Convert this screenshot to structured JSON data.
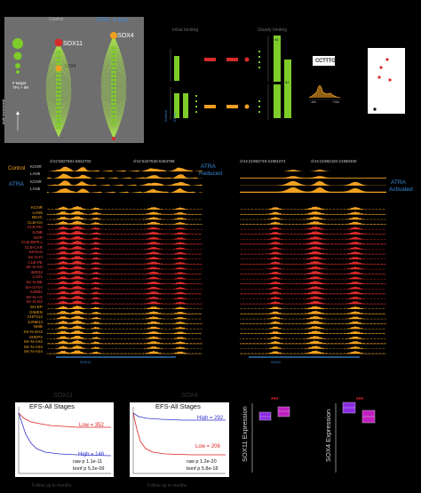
{
  "colors": {
    "background": "#000000",
    "green": "#7dcc2a",
    "red": "#d92b2b",
    "orange": "#f0a020",
    "blue": "#3a8bd8",
    "gray_panel": "#6e6e6e",
    "purple": "#8a2be2",
    "magenta": "#c020c0",
    "km_red": "#d22",
    "km_blue": "#33c"
  },
  "panel_a": {
    "col_left": "Control",
    "col_right": "ATRA, 4 days",
    "gene_left": "SOX11",
    "gene_right": "SOX4",
    "orange_label": "SOX4",
    "axis_label_1": "# target",
    "axis_label_2": "TFs + 99",
    "axis_label_3": "motif enrichment"
  },
  "panel_b": {
    "left_title": "Initial binding",
    "right_title": "Steady binding",
    "x_labels": [
      "Control",
      "ATRA"
    ],
    "bar_values": [
      "98",
      "84"
    ],
    "motif_label": "CCTTTG",
    "motif_axis": [
      "-1kb",
      "+1kb"
    ]
  },
  "tracks_left": {
    "coord_1": "chr2:5827691-5842702",
    "coord_2": "chr2:6427620-6453788",
    "top_labels": [
      "KCNR",
      "LAN5",
      "KCNR",
      "LAN5"
    ],
    "group_control": "Control",
    "group_atra": "ATRA",
    "annotation": [
      "ATRA",
      "Reduced"
    ],
    "gene_label": "SOX11"
  },
  "tracks_right": {
    "coord_1": "chr4:21982749-21991074",
    "coord_2": "chr4:21982420-21990400",
    "annotation": [
      "ATRA",
      "Activated"
    ],
    "gene_label": "SOX4"
  },
  "cell_lines": [
    "KCNR",
    "LAN5",
    "BE2C",
    "CLB-GA",
    "CLB-MA",
    "SJNB",
    "NGP",
    "CLB-BER-L",
    "CLB-CAR",
    "SKNAS",
    "SK-N-FI",
    "CLB-PE",
    "SK-N-SH",
    "IMR32",
    "LAN1",
    "SK-N-BE",
    "SH-SY5Y",
    "SJNB1",
    "SK-N-AS",
    "SK-N-DZ",
    "SH-EP",
    "GIMEN",
    "CHP212",
    "SJNB12",
    "NMB",
    "SK-N-SH2",
    "SHEP2",
    "SK-N-AS2",
    "SK-N-AS3",
    "SK-N-AS4"
  ],
  "km_left": {
    "gene": "SOX11",
    "title": "EFS-All Stages",
    "low_label": "Low = 352",
    "high_label": "High = 146",
    "raw_p": "raw p 1.1e-11",
    "bonf_p": "bonf p 5.2e-09",
    "x_label": "Follow up in months"
  },
  "km_right": {
    "gene": "SOX4",
    "title": "EFS-All Stages",
    "high_label": "High = 292",
    "low_label": "Low = 206",
    "raw_p": "raw p 1.2e-20",
    "bonf_p": "bonf p 5.8e-18",
    "x_label": "Follow up in months"
  },
  "box_left": {
    "ylabel": "SOX11 Expression",
    "stars": "***"
  },
  "box_right": {
    "ylabel": "SOX4 Expression",
    "stars": "***"
  }
}
